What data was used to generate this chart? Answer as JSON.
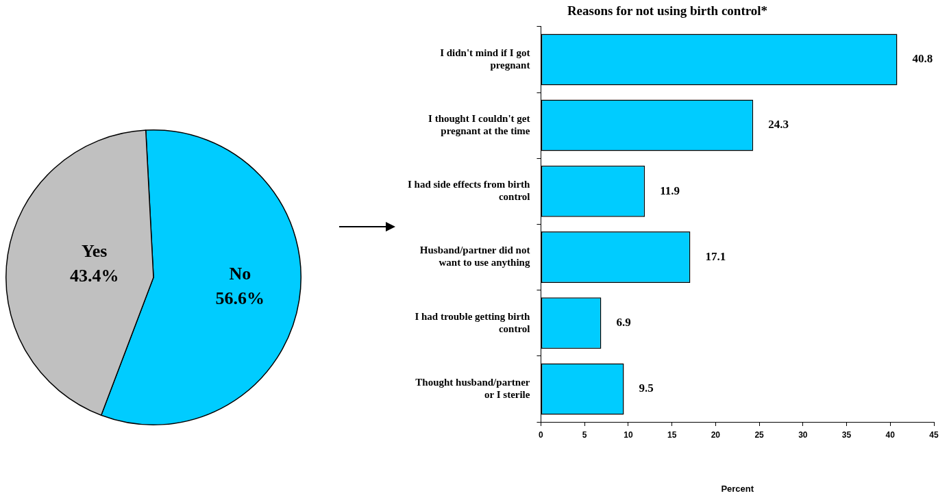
{
  "chart_data": [
    {
      "type": "pie",
      "categories": [
        "No",
        "Yes"
      ],
      "values": [
        56.6,
        43.4
      ],
      "colors": [
        "#00ccff",
        "#c0c0c0"
      ],
      "value_labels": [
        "56.6%",
        "43.4%"
      ]
    },
    {
      "type": "bar",
      "orientation": "horizontal",
      "title": "Reasons for not using birth control*",
      "xlabel": "Percent",
      "categories": [
        "I didn't mind if I got pregnant",
        "I thought I couldn't get pregnant at the time",
        "I had side effects from birth control",
        "Husband/partner did not want to use anything",
        "I had trouble getting birth control",
        "Thought husband/partner or I sterile"
      ],
      "values": [
        40.8,
        24.3,
        11.9,
        17.1,
        6.9,
        9.5
      ],
      "color": "#00ccff",
      "xlim": [
        0,
        45
      ],
      "xticks": [
        0,
        5,
        10,
        15,
        20,
        25,
        30,
        35,
        40,
        45
      ],
      "data_labels": true
    }
  ]
}
